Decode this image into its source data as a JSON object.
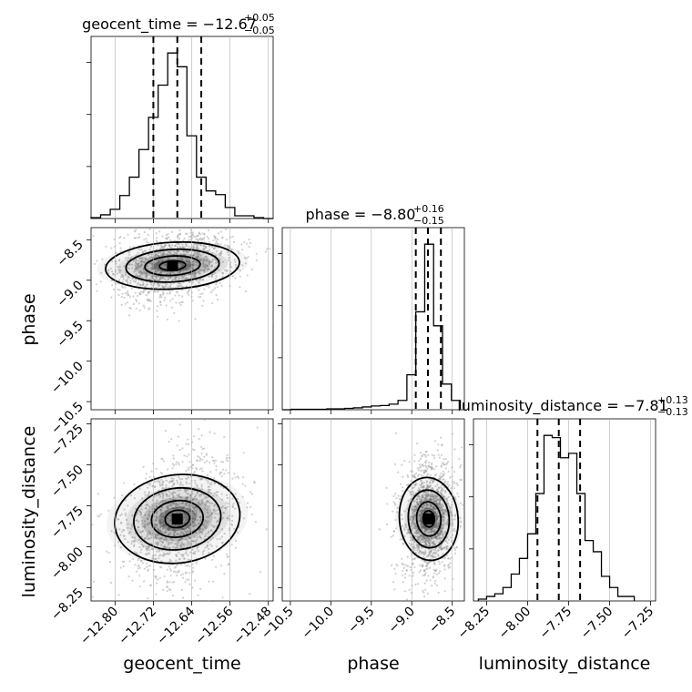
{
  "parameters": [
    "geocent_time",
    "phase",
    "luminosity_distance"
  ],
  "titles": {
    "geocent_time": {
      "label": "geocent_time",
      "median": "−12.67",
      "plus": "+0.05",
      "minus": "−0.05"
    },
    "phase": {
      "label": "phase",
      "median": "−8.80",
      "plus": "+0.16",
      "minus": "−0.15"
    },
    "luminosity_distance": {
      "label": "luminosity_distance",
      "median": "−7.81",
      "plus": "+0.13",
      "minus": "−0.13"
    }
  },
  "axis_labels": {
    "x": [
      "geocent_time",
      "phase",
      "luminosity_distance"
    ],
    "y": [
      "phase",
      "luminosity_distance"
    ]
  },
  "ticks": {
    "geocent_time": [
      "−12.80",
      "−12.72",
      "−12.64",
      "−12.56",
      "−12.48"
    ],
    "phase": [
      "−10.5",
      "−10.0",
      "−9.5",
      "−9.0",
      "−8.5"
    ],
    "phase_y": [
      "−8.5",
      "−9.0",
      "−9.5",
      "−10.0",
      "−10.5"
    ],
    "luminosity_distance": [
      "−8.25",
      "−8.00",
      "−7.75",
      "−7.50",
      "−7.25"
    ],
    "luminosity_distance_y": [
      "−7.25",
      "−7.50",
      "−7.75",
      "−8.00",
      "−8.25"
    ]
  },
  "chart_data": [
    {
      "type": "histogram",
      "parameter": "geocent_time",
      "xlim": [
        -12.85,
        -12.47
      ],
      "bin_edges": [
        -12.85,
        -12.83,
        -12.81,
        -12.79,
        -12.77,
        -12.75,
        -12.73,
        -12.71,
        -12.69,
        -12.67,
        -12.65,
        -12.63,
        -12.61,
        -12.59,
        -12.57,
        -12.55,
        -12.53,
        -12.51,
        -12.49,
        -12.47
      ],
      "counts": [
        1,
        4,
        10,
        25,
        45,
        75,
        110,
        145,
        180,
        165,
        90,
        45,
        30,
        26,
        12,
        3,
        3,
        1,
        0
      ],
      "quantiles": [
        -12.72,
        -12.67,
        -12.62
      ]
    },
    {
      "type": "histogram",
      "parameter": "phase",
      "xlim": [
        -10.6,
        -8.35
      ],
      "bin_edges": [
        -10.6,
        -10.49,
        -10.38,
        -10.27,
        -10.16,
        -10.05,
        -9.94,
        -9.83,
        -9.72,
        -9.61,
        -9.5,
        -9.39,
        -9.28,
        -9.17,
        -9.06,
        -8.95,
        -8.84,
        -8.73,
        -8.62,
        -8.51,
        -8.4
      ],
      "counts": [
        0,
        1,
        1,
        1,
        1,
        2,
        2,
        3,
        4,
        6,
        8,
        9,
        12,
        20,
        75,
        210,
        355,
        180,
        55,
        20
      ],
      "quantiles": [
        -8.95,
        -8.8,
        -8.64
      ]
    },
    {
      "type": "histogram",
      "parameter": "luminosity_distance",
      "xlim": [
        -8.33,
        -7.22
      ],
      "bin_edges": [
        -8.3,
        -8.25,
        -8.2,
        -8.15,
        -8.1,
        -8.05,
        -8.0,
        -7.95,
        -7.9,
        -7.85,
        -7.8,
        -7.75,
        -7.7,
        -7.65,
        -7.6,
        -7.55,
        -7.5,
        -7.45,
        -7.4,
        -7.35
      ],
      "counts": [
        4,
        10,
        16,
        30,
        60,
        95,
        150,
        240,
        370,
        365,
        320,
        330,
        240,
        135,
        110,
        55,
        30,
        10,
        10
      ],
      "quantiles": [
        -7.94,
        -7.81,
        -7.68
      ]
    },
    {
      "type": "scatter_density",
      "x": "geocent_time",
      "y": "phase",
      "xlim": [
        -12.85,
        -12.47
      ],
      "ylim": [
        -10.6,
        -8.35
      ],
      "mode_center": [
        -12.68,
        -8.82
      ]
    },
    {
      "type": "scatter_density",
      "x": "geocent_time",
      "y": "luminosity_distance",
      "xlim": [
        -12.85,
        -12.47
      ],
      "ylim": [
        -8.33,
        -7.22
      ],
      "mode_center": [
        -12.67,
        -7.83
      ]
    },
    {
      "type": "scatter_density",
      "x": "phase",
      "y": "luminosity_distance",
      "xlim": [
        -10.6,
        -8.35
      ],
      "ylim": [
        -8.33,
        -7.22
      ],
      "mode_center": [
        -8.79,
        -7.83
      ]
    }
  ],
  "colors": {
    "line": "#000000",
    "grid": "#b0b0b0",
    "points": "#9a9a9a"
  }
}
